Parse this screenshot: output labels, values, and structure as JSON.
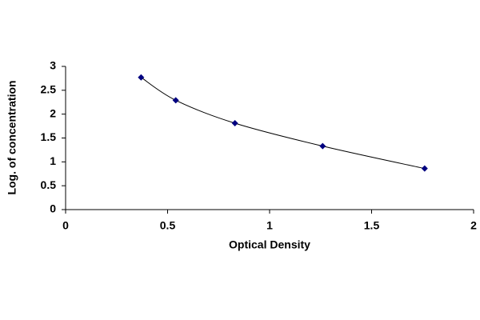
{
  "chart_data": {
    "type": "scatter",
    "x_label": "Optical Density",
    "y_label": "Log. of concentration",
    "x": [
      0.37,
      0.54,
      0.83,
      1.26,
      1.76
    ],
    "values": [
      2.77,
      2.29,
      1.81,
      1.33,
      0.86
    ],
    "color": "#000080",
    "line_color": "#000000",
    "smooth_line": true,
    "xlim": [
      0,
      2
    ],
    "xticks": [
      0,
      0.5,
      1,
      1.5,
      2
    ],
    "ylim": [
      0,
      3
    ],
    "yticks": [
      0,
      0.5,
      1,
      1.5,
      2,
      2.5,
      3
    ],
    "grid": false
  }
}
